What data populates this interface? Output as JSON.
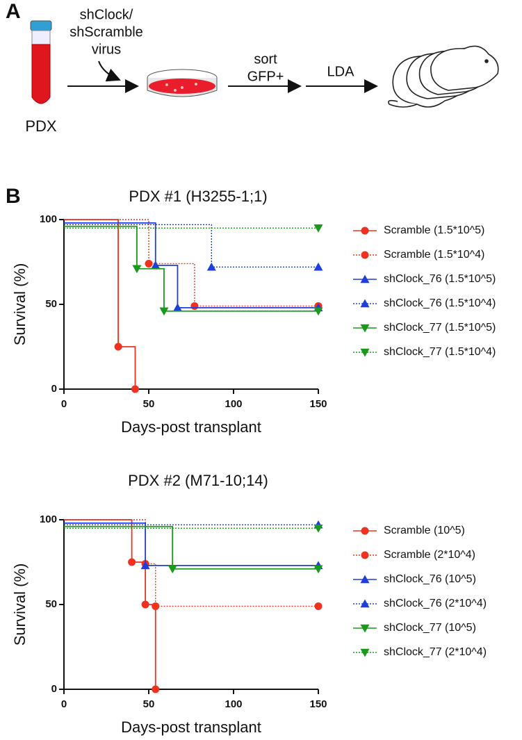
{
  "panel_a": {
    "label": "A",
    "virus_lines": [
      "shClock/",
      "shScramble",
      "virus"
    ],
    "source": "PDX",
    "sort_lines": [
      "sort",
      "GFP+"
    ],
    "assay": "LDA"
  },
  "panel_b": {
    "label": "B"
  },
  "chart_data": [
    {
      "type": "survival",
      "title": "PDX #1 (H3255-1;1)",
      "xlabel": "Days-post transplant",
      "ylabel": "Survival (%)",
      "xlim": [
        0,
        150
      ],
      "ylim": [
        0,
        100
      ],
      "xticks": [
        0,
        50,
        100,
        150
      ],
      "yticks": [
        0,
        50,
        100
      ],
      "series": [
        {
          "name": "Scramble (1.5*10^5)",
          "color": "#f0311f",
          "style": "solid",
          "marker": "circle",
          "x": [
            0,
            32,
            42
          ],
          "values": [
            100,
            25,
            0
          ]
        },
        {
          "name": "Scramble (1.5*10^4)",
          "color": "#f0311f",
          "style": "dotted",
          "marker": "circle",
          "x": [
            0,
            50,
            77,
            150
          ],
          "values": [
            100,
            74,
            49,
            49
          ]
        },
        {
          "name": "shClock_76 (1.5*10^5)",
          "color": "#1f3fdc",
          "style": "solid",
          "marker": "triangle-up",
          "x": [
            0,
            54,
            67,
            150
          ],
          "values": [
            98,
            73,
            48,
            48
          ]
        },
        {
          "name": "shClock_76 (1.5*10^4)",
          "color": "#1f3fdc",
          "style": "dotted",
          "marker": "triangle-up",
          "x": [
            0,
            87,
            150
          ],
          "values": [
            97,
            72,
            72
          ]
        },
        {
          "name": "shClock_77 (1.5*10^5)",
          "color": "#1a9a1a",
          "style": "solid",
          "marker": "triangle-down",
          "x": [
            0,
            43,
            59,
            150
          ],
          "values": [
            96,
            71,
            46,
            46
          ]
        },
        {
          "name": "shClock_77 (1.5*10^4)",
          "color": "#1a9a1a",
          "style": "dotted",
          "marker": "triangle-down",
          "x": [
            0,
            150
          ],
          "values": [
            95,
            95
          ]
        }
      ]
    },
    {
      "type": "survival",
      "title": "PDX #2 (M71-10;14)",
      "xlabel": "Days-post transplant",
      "ylabel": "Survival (%)",
      "xlim": [
        0,
        150
      ],
      "ylim": [
        0,
        100
      ],
      "xticks": [
        0,
        50,
        100,
        150
      ],
      "yticks": [
        0,
        50,
        100
      ],
      "series": [
        {
          "name": "Scramble (10^5)",
          "color": "#f0311f",
          "style": "solid",
          "marker": "circle",
          "x": [
            0,
            40,
            48,
            54
          ],
          "values": [
            100,
            75,
            50,
            0
          ]
        },
        {
          "name": "Scramble (2*10^4)",
          "color": "#f0311f",
          "style": "dotted",
          "marker": "circle",
          "x": [
            0,
            48,
            54,
            150
          ],
          "values": [
            100,
            74,
            49,
            49
          ]
        },
        {
          "name": "shClock_76 (10^5)",
          "color": "#1f3fdc",
          "style": "solid",
          "marker": "triangle-up",
          "x": [
            0,
            48,
            150
          ],
          "values": [
            98,
            73,
            73
          ]
        },
        {
          "name": "shClock_76 (2*10^4)",
          "color": "#1f3fdc",
          "style": "dotted",
          "marker": "triangle-up",
          "x": [
            0,
            150
          ],
          "values": [
            97,
            97
          ]
        },
        {
          "name": "shClock_77 (10^5)",
          "color": "#1a9a1a",
          "style": "solid",
          "marker": "triangle-down",
          "x": [
            0,
            64,
            150
          ],
          "values": [
            96,
            71,
            71
          ]
        },
        {
          "name": "shClock_77 (2*10^4)",
          "color": "#1a9a1a",
          "style": "dotted",
          "marker": "triangle-down",
          "x": [
            0,
            150
          ],
          "values": [
            95,
            95
          ]
        }
      ]
    }
  ]
}
